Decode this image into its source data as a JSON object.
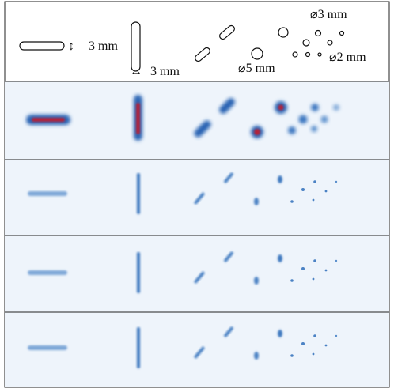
{
  "labels": {
    "slot_height": "3 mm",
    "slot_width": "3 mm",
    "hole_small_group": "⌀3 mm",
    "hole_large": "⌀5 mm",
    "hole_smallest_group": "⌀2 mm"
  }
}
